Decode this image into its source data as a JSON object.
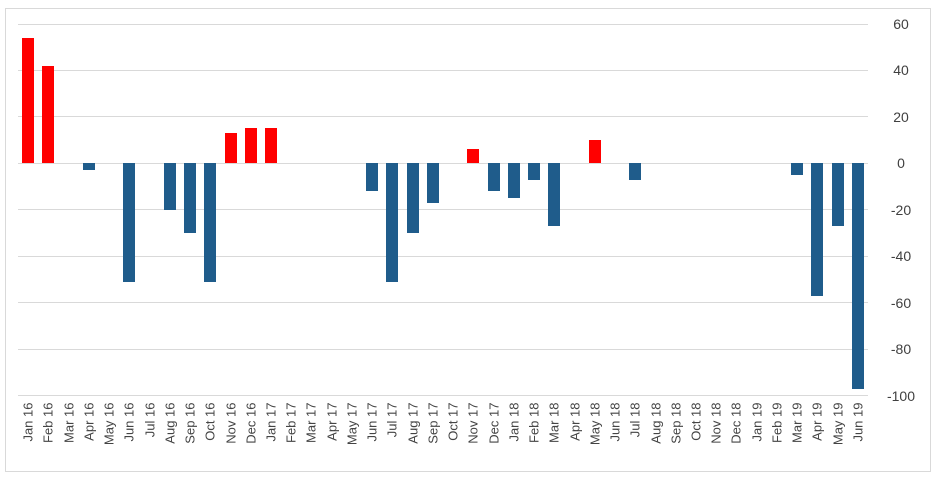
{
  "chart": {
    "background_color": "#FFFFFF",
    "border_color": "#D9D9D9",
    "gridline_color": "#D9D9D9",
    "tick_label_color": "#404040"
  },
  "chart_data": {
    "type": "bar",
    "title": "",
    "xlabel": "",
    "ylabel": "",
    "legend": "none",
    "grid": true,
    "y_axis_position": "right",
    "ylim": [
      -100,
      60
    ],
    "ytick_interval": 20,
    "ytick_labels": [
      "60",
      "40",
      "20",
      "0",
      "-20",
      "-40",
      "-60",
      "-80",
      "-100"
    ],
    "ytick_values": [
      60,
      40,
      20,
      0,
      -20,
      -40,
      -60,
      -80,
      -100
    ],
    "positive_color": "#FF0000",
    "negative_color": "#1F5C8B",
    "categories": [
      "Jan 16",
      "Feb 16",
      "Mar 16",
      "Apr 16",
      "May 16",
      "Jun 16",
      "Jul 16",
      "Aug 16",
      "Sep 16",
      "Oct 16",
      "Nov 16",
      "Dec 16",
      "Jan 17",
      "Feb 17",
      "Mar 17",
      "Apr 17",
      "May 17",
      "Jun 17",
      "Jul 17",
      "Aug 17",
      "Sep 17",
      "Oct 17",
      "Nov 17",
      "Dec 17",
      "Jan 18",
      "Feb 18",
      "Mar 18",
      "Apr 18",
      "May 18",
      "Jun 18",
      "Jul 18",
      "Aug 18",
      "Sep 18",
      "Oct 18",
      "Nov 18",
      "Dec 18",
      "Jan 19",
      "Feb 19",
      "Mar 19",
      "Apr 19",
      "May 19",
      "Jun 19"
    ],
    "values": [
      54,
      42,
      0,
      -3,
      0,
      -51,
      0,
      -20,
      -30,
      -51,
      13,
      15,
      15,
      0,
      0,
      0,
      0,
      -12,
      -51,
      -30,
      -17,
      0,
      6,
      -12,
      -15,
      -7,
      -27,
      0,
      10,
      0,
      -7,
      0,
      0,
      0,
      0,
      0,
      0,
      0,
      -5,
      -57,
      -27,
      -97
    ]
  }
}
